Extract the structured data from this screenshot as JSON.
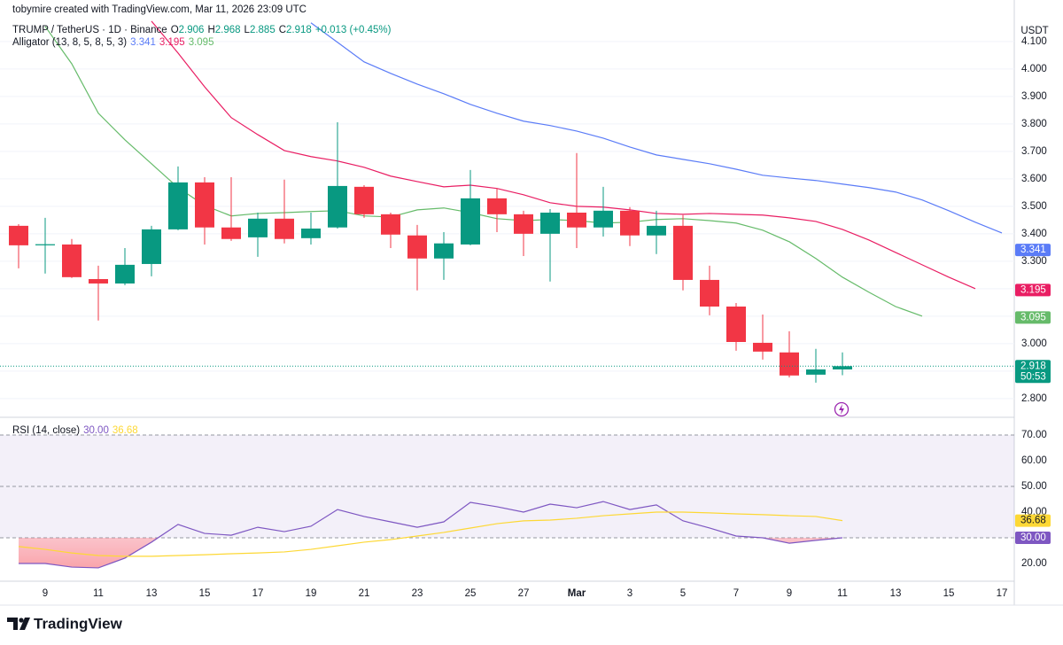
{
  "header": {
    "credit": "tobymire created with TradingView.com, Mar 11, 2026 23:09 UTC",
    "brand": "TradingView"
  },
  "chart_data": [
    {
      "type": "candlestick",
      "symbol": "TRUMP / TetherUS · 1D · Binance",
      "ohlc_legend": [
        {
          "label": "O",
          "value": 2.906
        },
        {
          "label": "H",
          "value": 2.968
        },
        {
          "label": "L",
          "value": 2.885
        },
        {
          "label": "C",
          "value": 2.918
        }
      ],
      "change": "+0.013 (+0.45%)",
      "currency": "USDT",
      "categories": [
        null,
        "9",
        null,
        "11",
        null,
        "13",
        null,
        "15",
        null,
        "17",
        null,
        "19",
        null,
        "21",
        null,
        "23",
        null,
        "25",
        null,
        "27",
        null,
        "Mar",
        null,
        "3",
        null,
        "5",
        null,
        "7",
        null,
        "9",
        null,
        "11",
        null,
        "13",
        null,
        "15",
        null,
        "17"
      ],
      "open": [
        3.429,
        3.358,
        3.361,
        3.235,
        3.219,
        3.29,
        3.416,
        3.587,
        3.423,
        3.387,
        3.455,
        3.384,
        3.423,
        3.571,
        3.471,
        3.394,
        3.31,
        3.361,
        3.529,
        3.471,
        3.4,
        3.477,
        3.423,
        3.484,
        3.394,
        3.429,
        3.232,
        3.135,
        3.003,
        2.968,
        2.887,
        2.906,
        null,
        null,
        null,
        null,
        null,
        null
      ],
      "high": [
        3.435,
        3.458,
        3.381,
        3.284,
        3.348,
        3.429,
        3.645,
        3.606,
        3.606,
        3.477,
        3.597,
        3.477,
        3.806,
        3.577,
        3.477,
        3.432,
        3.406,
        3.632,
        3.565,
        3.484,
        3.49,
        3.694,
        3.571,
        3.497,
        3.484,
        3.468,
        3.284,
        3.148,
        3.106,
        3.045,
        2.981,
        2.968,
        null,
        null,
        null,
        null,
        null,
        null
      ],
      "low": [
        3.274,
        3.255,
        3.239,
        3.084,
        3.213,
        3.245,
        3.413,
        3.361,
        3.374,
        3.316,
        3.365,
        3.361,
        3.419,
        3.458,
        3.348,
        3.194,
        3.232,
        3.358,
        3.406,
        3.319,
        3.226,
        3.348,
        3.39,
        3.355,
        3.326,
        3.194,
        3.103,
        2.974,
        2.942,
        2.877,
        2.858,
        2.885,
        null,
        null,
        null,
        null,
        null,
        null
      ],
      "close": [
        3.358,
        3.362,
        3.242,
        3.219,
        3.287,
        3.416,
        3.587,
        3.423,
        3.381,
        3.455,
        3.381,
        3.419,
        3.574,
        3.471,
        3.397,
        3.31,
        3.365,
        3.529,
        3.471,
        3.4,
        3.477,
        3.423,
        3.484,
        3.394,
        3.429,
        3.232,
        3.135,
        3.006,
        2.971,
        2.884,
        2.906,
        2.918,
        null,
        null,
        null,
        null,
        null,
        null
      ],
      "up_color": "#089981",
      "down_color": "#f23645",
      "last_price": 2.918,
      "countdown": "50:53",
      "ylim": [
        2.735,
        4.206
      ],
      "yticks": [
        {
          "value": 2.8,
          "label": "2.800"
        },
        {
          "value": 2.9,
          "label": "2.900"
        },
        {
          "value": 3.0,
          "label": "3.000"
        },
        {
          "value": 3.1,
          "label": "3.100"
        },
        {
          "value": 3.2,
          "label": "3.200"
        },
        {
          "value": 3.3,
          "label": "3.300"
        },
        {
          "value": 3.4,
          "label": "3.400"
        },
        {
          "value": 3.5,
          "label": "3.500"
        },
        {
          "value": 3.6,
          "label": "3.600"
        },
        {
          "value": 3.7,
          "label": "3.700"
        },
        {
          "value": 3.8,
          "label": "3.800"
        },
        {
          "value": 3.9,
          "label": "3.900"
        },
        {
          "value": 4.0,
          "label": "4.000"
        },
        {
          "value": 4.1,
          "label": "4.100"
        }
      ],
      "grid": true,
      "indicator": {
        "title": "Alligator (13, 8, 5, 8, 5, 3)",
        "series": [
          {
            "color": "#5b7cf7",
            "last": 3.341,
            "values": [
              null,
              null,
              null,
              null,
              null,
              null,
              null,
              null,
              null,
              null,
              null,
              4.168,
              4.097,
              4.026,
              3.984,
              3.945,
              3.91,
              3.871,
              3.839,
              3.81,
              3.794,
              3.774,
              3.748,
              3.716,
              3.687,
              3.671,
              3.655,
              3.635,
              3.613,
              3.603,
              3.594,
              3.581,
              3.568,
              3.552,
              3.523,
              3.484,
              3.442,
              3.403
            ]
          },
          {
            "color": "#e91e63",
            "last": 3.195,
            "values": [
              null,
              null,
              null,
              null,
              null,
              4.174,
              4.058,
              3.935,
              3.823,
              3.761,
              3.703,
              3.681,
              3.665,
              3.642,
              3.61,
              3.59,
              3.571,
              3.577,
              3.565,
              3.542,
              3.513,
              3.5,
              3.497,
              3.487,
              3.474,
              3.471,
              3.474,
              3.471,
              3.468,
              3.458,
              3.445,
              3.416,
              3.377,
              3.332,
              3.287,
              3.242,
              3.2,
              null
            ]
          },
          {
            "color": "#66bb6a",
            "last": 3.095,
            "values": [
              null,
              4.155,
              4.019,
              3.839,
              3.742,
              3.655,
              3.568,
              3.503,
              3.465,
              3.474,
              3.477,
              3.481,
              3.484,
              3.465,
              3.461,
              3.487,
              3.494,
              3.477,
              3.455,
              3.448,
              3.452,
              3.448,
              3.439,
              3.442,
              3.452,
              3.455,
              3.448,
              3.439,
              3.413,
              3.371,
              3.31,
              3.242,
              3.187,
              3.135,
              3.1,
              null,
              null,
              null
            ]
          }
        ]
      }
    },
    {
      "type": "line",
      "title": "RSI (14, close)",
      "series": [
        {
          "color": "#7e57c2",
          "last": {
            "value": 30,
            "label": "30.00"
          },
          "values": [
            20.0,
            20.0,
            18.6,
            18.3,
            22.1,
            28.3,
            35.2,
            31.7,
            31.0,
            34.1,
            32.4,
            34.5,
            41.0,
            38.3,
            36.2,
            34.1,
            36.2,
            43.8,
            42.1,
            40.0,
            43.1,
            41.7,
            44.1,
            41.0,
            42.8,
            36.6,
            33.8,
            30.7,
            30.0,
            27.9,
            29.0,
            30.0,
            null,
            null,
            null,
            null,
            null,
            null
          ]
        },
        {
          "color": "#fdd835",
          "last": 36.68,
          "values": [
            26.6,
            25.5,
            24.1,
            23.1,
            22.8,
            22.8,
            23.1,
            23.4,
            23.8,
            24.1,
            24.5,
            25.5,
            26.9,
            28.3,
            29.3,
            30.7,
            32.1,
            33.8,
            35.5,
            36.6,
            36.9,
            37.6,
            38.6,
            39.3,
            40.0,
            40.0,
            39.7,
            39.3,
            39.0,
            38.6,
            38.3,
            36.68,
            null,
            null,
            null,
            null,
            null,
            null
          ]
        }
      ],
      "bands": [
        30,
        70
      ],
      "midline": 50,
      "ylim": [
        13.45,
        76.55
      ],
      "yticks": [
        {
          "value": 20,
          "label": "20.00"
        },
        {
          "value": 30,
          "label": "30.00"
        },
        {
          "value": 40,
          "label": "40.00"
        },
        {
          "value": 50,
          "label": "50.00"
        },
        {
          "value": 60,
          "label": "60.00"
        },
        {
          "value": 70,
          "label": "70.00"
        }
      ]
    }
  ]
}
